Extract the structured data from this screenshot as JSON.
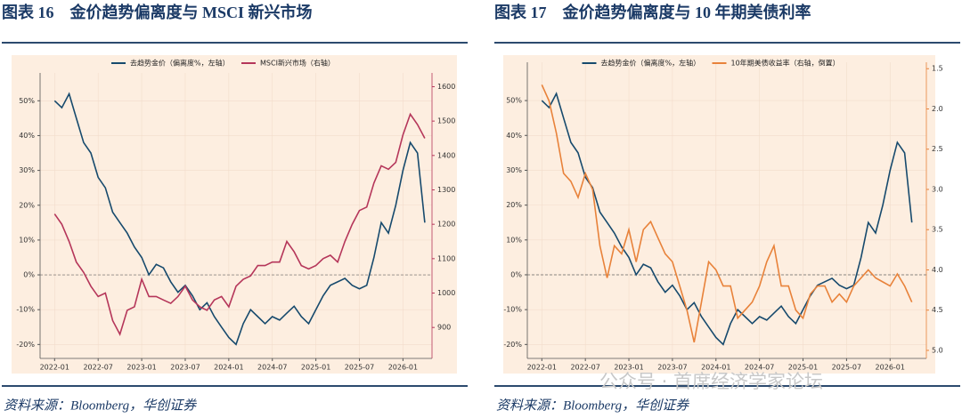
{
  "chart_data": [
    {
      "type": "line",
      "title": "图表 16　金价趋势偏离度与 MSCI 新兴市场",
      "source": "资料来源：Bloomberg，华创证券",
      "x": [
        "2022-01",
        "2022-02",
        "2022-03",
        "2022-04",
        "2022-05",
        "2022-06",
        "2022-07",
        "2022-08",
        "2022-09",
        "2022-10",
        "2022-11",
        "2022-12",
        "2023-01",
        "2023-02",
        "2023-03",
        "2023-04",
        "2023-05",
        "2023-06",
        "2023-07",
        "2023-08",
        "2023-09",
        "2023-10",
        "2023-11",
        "2023-12",
        "2024-01",
        "2024-02",
        "2024-03",
        "2024-04",
        "2024-05",
        "2024-06",
        "2024-07",
        "2024-08",
        "2024-09",
        "2024-10",
        "2024-11",
        "2024-12",
        "2025-01",
        "2025-02",
        "2025-03",
        "2025-04",
        "2025-05",
        "2025-06",
        "2025-07",
        "2025-08",
        "2025-09",
        "2025-10",
        "2025-11",
        "2025-12",
        "2026-01",
        "2026-02",
        "2026-03",
        "2026-04"
      ],
      "series": [
        {
          "name": "去趋势金价（偏离度%，左轴）",
          "color": "#174a6d",
          "axis": "y",
          "values": [
            50,
            48,
            52,
            45,
            38,
            35,
            28,
            25,
            18,
            15,
            12,
            8,
            5,
            0,
            3,
            2,
            -2,
            -5,
            -3,
            -6,
            -10,
            -8,
            -12,
            -15,
            -18,
            -20,
            -14,
            -10,
            -12,
            -14,
            -12,
            -13,
            -11,
            -9,
            -12,
            -14,
            -10,
            -6,
            -3,
            -2,
            -1,
            -3,
            -4,
            -3,
            5,
            15,
            12,
            20,
            30,
            38,
            35,
            15
          ]
        },
        {
          "name": "MSCI新兴市场（右轴）",
          "color": "#b5365a",
          "axis": "y2",
          "values": [
            1230,
            1200,
            1150,
            1090,
            1060,
            1020,
            990,
            1000,
            920,
            880,
            950,
            960,
            1040,
            990,
            990,
            980,
            970,
            990,
            1020,
            980,
            960,
            950,
            980,
            990,
            960,
            1020,
            1040,
            1050,
            1080,
            1080,
            1090,
            1090,
            1150,
            1120,
            1080,
            1070,
            1080,
            1100,
            1110,
            1090,
            1150,
            1200,
            1240,
            1250,
            1320,
            1370,
            1360,
            1380,
            1460,
            1520,
            1490,
            1450
          ]
        }
      ],
      "xlim": [
        "2021-11",
        "2026-05"
      ],
      "xticks": [
        "2022-01",
        "2022-07",
        "2023-01",
        "2023-07",
        "2024-01",
        "2024-07",
        "2025-01",
        "2025-07",
        "2026-01"
      ],
      "ylim": [
        -24,
        58
      ],
      "yticks": [
        {
          "value": -20,
          "label": "-20%"
        },
        {
          "value": -10,
          "label": "-10%"
        },
        {
          "value": 0,
          "label": "0%"
        },
        {
          "value": 10,
          "label": "10%"
        },
        {
          "value": 20,
          "label": "20%"
        },
        {
          "value": 30,
          "label": "30%"
        },
        {
          "value": 40,
          "label": "40%"
        },
        {
          "value": 50,
          "label": "50%"
        }
      ],
      "y2lim": [
        810,
        1640
      ],
      "y2ticks": [
        900,
        1000,
        1100,
        1200,
        1300,
        1400,
        1500,
        1600
      ],
      "y2_inverted": false,
      "reference_line": 0,
      "grid": true
    },
    {
      "type": "line",
      "title": "图表 17　金价趋势偏离度与 10 年期美债利率",
      "source": "资料来源：Bloomberg，华创证券",
      "watermark": "公众号 · 首席经济学家论坛",
      "x": [
        "2022-01",
        "2022-02",
        "2022-03",
        "2022-04",
        "2022-05",
        "2022-06",
        "2022-07",
        "2022-08",
        "2022-09",
        "2022-10",
        "2022-11",
        "2022-12",
        "2023-01",
        "2023-02",
        "2023-03",
        "2023-04",
        "2023-05",
        "2023-06",
        "2023-07",
        "2023-08",
        "2023-09",
        "2023-10",
        "2023-11",
        "2023-12",
        "2024-01",
        "2024-02",
        "2024-03",
        "2024-04",
        "2024-05",
        "2024-06",
        "2024-07",
        "2024-08",
        "2024-09",
        "2024-10",
        "2024-11",
        "2024-12",
        "2025-01",
        "2025-02",
        "2025-03",
        "2025-04",
        "2025-05",
        "2025-06",
        "2025-07",
        "2025-08",
        "2025-09",
        "2025-10",
        "2025-11",
        "2025-12",
        "2026-01",
        "2026-02",
        "2026-03",
        "2026-04"
      ],
      "series": [
        {
          "name": "去趋势金价（偏离度%，左轴）",
          "color": "#174a6d",
          "axis": "y",
          "values": [
            50,
            48,
            52,
            45,
            38,
            35,
            28,
            25,
            18,
            15,
            12,
            8,
            5,
            0,
            3,
            2,
            -2,
            -5,
            -3,
            -6,
            -10,
            -8,
            -12,
            -15,
            -18,
            -20,
            -14,
            -10,
            -12,
            -14,
            -12,
            -13,
            -11,
            -9,
            -12,
            -14,
            -10,
            -6,
            -3,
            -2,
            -1,
            -3,
            -4,
            -3,
            5,
            15,
            12,
            20,
            30,
            38,
            35,
            15
          ]
        },
        {
          "name": "10年期美债收益率（右轴，倒置）",
          "color": "#e8823a",
          "axis": "y2",
          "values": [
            1.7,
            1.9,
            2.3,
            2.8,
            2.9,
            3.1,
            2.8,
            3.0,
            3.7,
            4.1,
            3.7,
            3.8,
            3.5,
            3.9,
            3.5,
            3.4,
            3.6,
            3.8,
            3.9,
            4.2,
            4.5,
            4.9,
            4.4,
            3.9,
            4.0,
            4.2,
            4.2,
            4.6,
            4.5,
            4.4,
            4.2,
            3.9,
            3.7,
            4.2,
            4.2,
            4.5,
            4.6,
            4.3,
            4.2,
            4.2,
            4.4,
            4.3,
            4.4,
            4.2,
            4.1,
            4.0,
            4.1,
            4.15,
            4.2,
            4.05,
            4.2,
            4.4
          ]
        }
      ],
      "xlim": [
        "2021-11",
        "2026-06"
      ],
      "xticks": [
        "2022-01",
        "2022-07",
        "2023-01",
        "2023-07",
        "2024-01",
        "2024-07",
        "2025-01",
        "2025-07",
        "2026-01"
      ],
      "ylim": [
        -24,
        61
      ],
      "yticks": [
        {
          "value": -20,
          "label": "-20%"
        },
        {
          "value": -10,
          "label": "-10%"
        },
        {
          "value": 0,
          "label": "0%"
        },
        {
          "value": 10,
          "label": "10%"
        },
        {
          "value": 20,
          "label": "20%"
        },
        {
          "value": 30,
          "label": "30%"
        },
        {
          "value": 40,
          "label": "40%"
        },
        {
          "value": 50,
          "label": "50%"
        }
      ],
      "y2lim": [
        1.42,
        5.1
      ],
      "y2ticks": [
        1.5,
        {
          "value": 2,
          "label": "2.0"
        },
        2.5,
        {
          "value": 3,
          "label": "3.0"
        },
        3.5,
        {
          "value": 4,
          "label": "4.0"
        },
        4.5,
        {
          "value": 5,
          "label": "5.0"
        }
      ],
      "y2_inverted": true,
      "reference_line": 0,
      "grid": true
    }
  ]
}
